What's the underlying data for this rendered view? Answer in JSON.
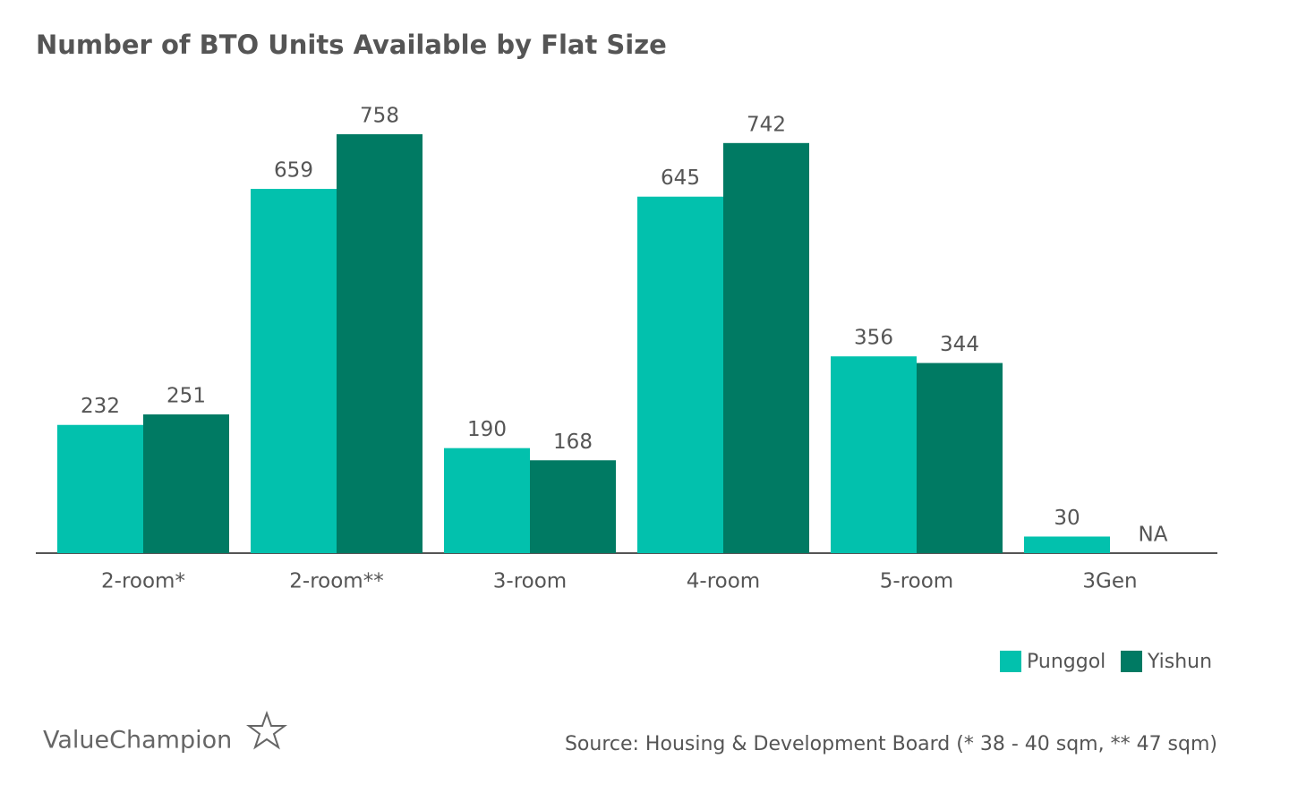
{
  "chart_data": {
    "type": "bar",
    "title": "Number of BTO Units Available by Flat Size",
    "categories": [
      "2-room*",
      "2-room**",
      "3-room",
      "4-room",
      "5-room",
      "3Gen"
    ],
    "series": [
      {
        "name": "Punggol",
        "color": "#02c1ad",
        "values": [
          232,
          659,
          190,
          645,
          356,
          30
        ]
      },
      {
        "name": "Yishun",
        "color": "#007a63",
        "values": [
          251,
          758,
          168,
          742,
          344,
          null
        ],
        "value_labels": [
          "251",
          "758",
          "168",
          "742",
          "344",
          "NA"
        ]
      }
    ],
    "ylim": [
      0,
      800
    ],
    "legend": "bottom-right",
    "source": "Source: Housing & Development Board (* 38 - 40 sqm, ** 47 sqm)",
    "brand": "ValueChampion"
  }
}
